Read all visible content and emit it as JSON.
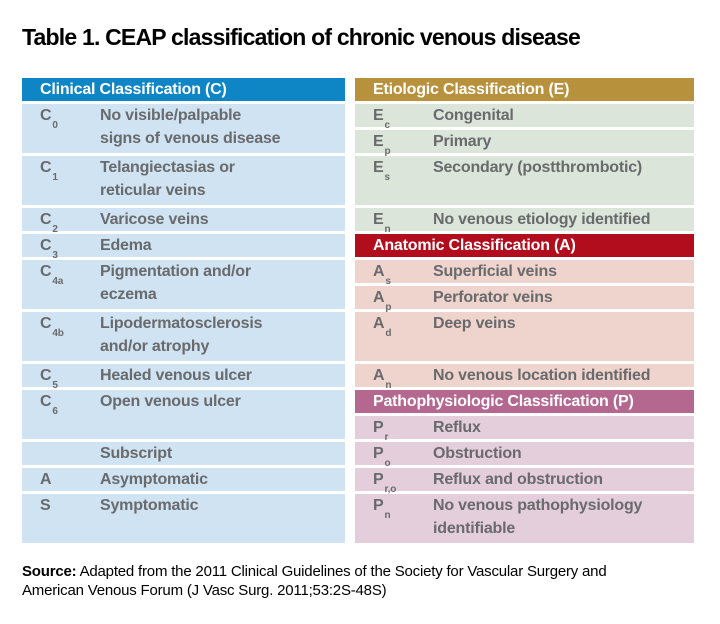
{
  "title": "Table 1. CEAP classification of chronic venous disease",
  "colors": {
    "page_bg": "#ffffff",
    "cell_text": "#696a6c",
    "header_text": "#ffffff",
    "title_text": "#000000",
    "clinical_header_bg": "#0e86c6",
    "clinical_row_bg": "#d0e3f2",
    "etiologic_header_bg": "#b7913b",
    "etiologic_row_bg": "#dbe5da",
    "anatomic_header_bg": "#b20d1d",
    "anatomic_row_bg": "#efd4ce",
    "pathophysiologic_header_bg": "#b4688f",
    "pathophysiologic_row_bg": "#e5cedc"
  },
  "table": {
    "columns": [
      {
        "name": "clinical-column",
        "sections": [
          {
            "header_label": "Clinical Classification (C)",
            "header_bg": "#0e86c6",
            "row_bg": "#d0e3f2",
            "rows": [
              {
                "label": "C",
                "sub": "0",
                "text": "No visible/palpable\nsigns of venous disease",
                "units": 2
              },
              {
                "label": "C",
                "sub": "1",
                "text": "Telangiectasias or\nreticular veins",
                "units": 2
              },
              {
                "label": "C",
                "sub": "2",
                "text": "Varicose veins",
                "units": 1
              },
              {
                "label": "C",
                "sub": "3",
                "text": "Edema",
                "units": 1
              },
              {
                "label": "C",
                "sub": "4a",
                "text": "Pigmentation and/or\neczema",
                "units": 2
              },
              {
                "label": "C",
                "sub": "4b",
                "text": "Lipodermatosclerosis\nand/or atrophy",
                "units": 2
              },
              {
                "label": "C",
                "sub": "5",
                "text": "Healed venous ulcer",
                "units": 1
              },
              {
                "label": "C",
                "sub": "6",
                "text": "Open venous ulcer",
                "units": 2
              },
              {
                "label": "",
                "sub": "",
                "text": "Subscript",
                "units": 1
              },
              {
                "label": "A",
                "sub": "",
                "text": "Asymptomatic",
                "units": 1
              },
              {
                "label": "S",
                "sub": "",
                "text": "Symptomatic",
                "units": 2
              }
            ]
          }
        ]
      },
      {
        "name": "etiologic-anatomic-pathophysiologic-column",
        "sections": [
          {
            "header_label": "Etiologic Classification (E)",
            "header_bg": "#b7913b",
            "row_bg": "#dbe5da",
            "rows": [
              {
                "label": "E",
                "sub": "c",
                "text": "Congenital",
                "units": 1
              },
              {
                "label": "E",
                "sub": "p",
                "text": "Primary",
                "units": 1
              },
              {
                "label": "E",
                "sub": "s",
                "text": "Secondary (postthrombotic)",
                "units": 2
              },
              {
                "label": "E",
                "sub": "n",
                "text": "No venous etiology identified",
                "units": 1
              }
            ]
          },
          {
            "header_label": "Anatomic Classification (A)",
            "header_bg": "#b20d1d",
            "row_bg": "#efd4ce",
            "rows": [
              {
                "label": "A",
                "sub": "s",
                "text": "Superficial veins",
                "units": 1
              },
              {
                "label": "A",
                "sub": "p",
                "text": "Perforator veins",
                "units": 1
              },
              {
                "label": "A",
                "sub": "d",
                "text": "Deep veins",
                "units": 2
              },
              {
                "label": "A",
                "sub": "n",
                "text": "No venous location identified",
                "units": 1
              }
            ]
          },
          {
            "header_label": "Pathophysiologic Classification (P)",
            "header_bg": "#b4688f",
            "row_bg": "#e5cedc",
            "rows": [
              {
                "label": "P",
                "sub": "r",
                "text": "Reflux",
                "units": 1
              },
              {
                "label": "P",
                "sub": "o",
                "text": "Obstruction",
                "units": 1
              },
              {
                "label": "P",
                "sub": "r,o",
                "text": "Reflux and obstruction",
                "units": 1
              },
              {
                "label": "P",
                "sub": "n",
                "text": "No venous pathophysiology\nidentifiable",
                "units": 2
              }
            ]
          }
        ]
      }
    ]
  },
  "source": {
    "label": "Source:",
    "text": " Adapted from the 2011 Clinical Guidelines of the Society for Vascular Surgery and\nAmerican Venous Forum (J Vasc Surg. 2011;53:2S-48S)"
  }
}
